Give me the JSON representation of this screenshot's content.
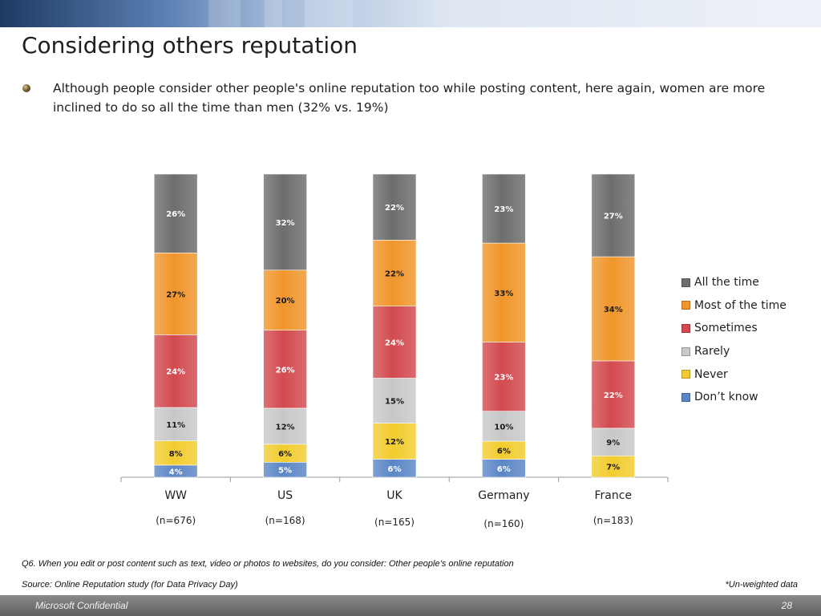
{
  "slide": {
    "title": "Considering others reputation",
    "bullet": "Although people consider other people's online reputation too while posting content, here again, women are more inclined to do so all the time than men (32% vs. 19%)",
    "question": "Q6. When you edit or post content such as text, video or photos to websites, do you  consider: Other people’s online reputation",
    "source": "Source: Online Reputation study (for Data Privacy Day)",
    "note": "*Un-weighted data",
    "confidential": "Microsoft Confidential",
    "page_number": "28"
  },
  "chart_data": {
    "type": "bar",
    "stacked": true,
    "percent": true,
    "categories": [
      "WW",
      "US",
      "UK",
      "Germany",
      "France"
    ],
    "sample_sizes": [
      "(n=676)",
      "(n=168)",
      "(n=165)",
      "(n=160)",
      "(n=183)"
    ],
    "series": [
      {
        "name": "Don’t know",
        "color": "#5b86c5",
        "values": [
          4,
          5,
          6,
          6,
          null
        ]
      },
      {
        "name": "Never",
        "color": "#f2cc2e",
        "values": [
          8,
          6,
          12,
          6,
          7
        ]
      },
      {
        "name": "Rarely",
        "color": "#c8c8c8",
        "values": [
          11,
          12,
          15,
          10,
          9
        ]
      },
      {
        "name": "Sometimes",
        "color": "#d24a4f",
        "values": [
          24,
          26,
          24,
          23,
          22
        ]
      },
      {
        "name": "Most of the time",
        "color": "#f0952a",
        "values": [
          27,
          20,
          22,
          33,
          34
        ]
      },
      {
        "name": "All the time",
        "color": "#6d6d6d",
        "values": [
          26,
          32,
          22,
          23,
          27
        ]
      }
    ],
    "legend_position": "right",
    "grid": false
  }
}
